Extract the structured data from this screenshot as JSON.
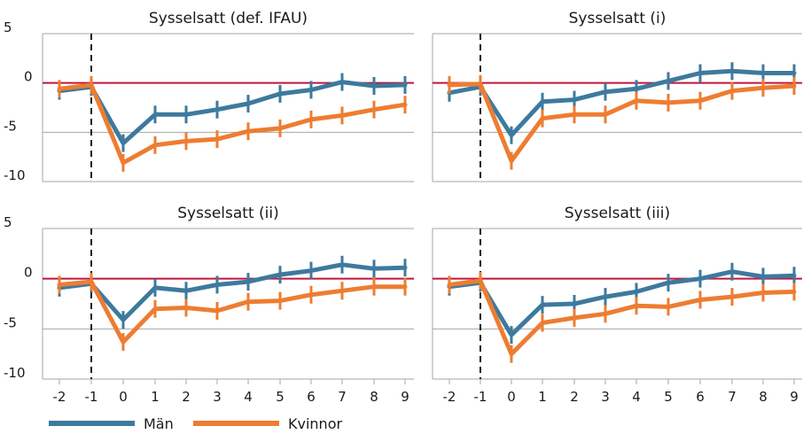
{
  "chart_data": [
    {
      "type": "line",
      "title": "Sysselsatt (def. IFAU)",
      "x": [
        -2,
        -1,
        0,
        1,
        2,
        3,
        4,
        5,
        6,
        7,
        8,
        9
      ],
      "ylim": [
        -10,
        5
      ],
      "yticks": [
        5,
        0,
        -5,
        -10
      ],
      "series": [
        {
          "name": "Män",
          "values": [
            -0.8,
            -0.4,
            -6.1,
            -3.2,
            -3.2,
            -2.7,
            -2.1,
            -1.1,
            -0.7,
            0.1,
            -0.3,
            -0.2
          ]
        },
        {
          "name": "Kvinnor",
          "values": [
            -0.6,
            -0.2,
            -8.1,
            -6.3,
            -5.9,
            -5.7,
            -4.9,
            -4.6,
            -3.7,
            -3.3,
            -2.7,
            -2.2
          ]
        }
      ]
    },
    {
      "type": "line",
      "title": "Sysselsatt (i)",
      "x": [
        -2,
        -1,
        0,
        1,
        2,
        3,
        4,
        5,
        6,
        7,
        8,
        9
      ],
      "ylim": [
        -10,
        5
      ],
      "yticks": [
        5,
        0,
        -5,
        -10
      ],
      "series": [
        {
          "name": "Män",
          "values": [
            -1.0,
            -0.4,
            -5.3,
            -1.9,
            -1.7,
            -0.9,
            -0.6,
            0.2,
            1.0,
            1.2,
            1.0,
            1.0
          ]
        },
        {
          "name": "Kvinnor",
          "values": [
            -0.2,
            -0.1,
            -7.9,
            -3.6,
            -3.2,
            -3.2,
            -1.8,
            -2.0,
            -1.8,
            -0.8,
            -0.5,
            -0.3
          ]
        }
      ]
    },
    {
      "type": "line",
      "title": "Sysselsatt (ii)",
      "x": [
        -2,
        -1,
        0,
        1,
        2,
        3,
        4,
        5,
        6,
        7,
        8,
        9
      ],
      "ylim": [
        -10,
        5
      ],
      "yticks": [
        5,
        0,
        -5,
        -10
      ],
      "series": [
        {
          "name": "Män",
          "values": [
            -0.9,
            -0.5,
            -4.1,
            -0.9,
            -1.2,
            -0.6,
            -0.3,
            0.4,
            0.8,
            1.4,
            1.0,
            1.1
          ]
        },
        {
          "name": "Kvinnor",
          "values": [
            -0.6,
            -0.3,
            -6.3,
            -3.0,
            -2.9,
            -3.2,
            -2.3,
            -2.2,
            -1.6,
            -1.2,
            -0.8,
            -0.8
          ]
        }
      ]
    },
    {
      "type": "line",
      "title": "Sysselsatt (iii)",
      "x": [
        -2,
        -1,
        0,
        1,
        2,
        3,
        4,
        5,
        6,
        7,
        8,
        9
      ],
      "ylim": [
        -10,
        5
      ],
      "yticks": [
        5,
        0,
        -5,
        -10
      ],
      "series": [
        {
          "name": "Män",
          "values": [
            -0.8,
            -0.4,
            -5.6,
            -2.6,
            -2.5,
            -1.8,
            -1.3,
            -0.4,
            0.0,
            0.7,
            0.2,
            0.3
          ]
        },
        {
          "name": "Kvinnor",
          "values": [
            -0.6,
            -0.2,
            -7.5,
            -4.4,
            -3.9,
            -3.5,
            -2.7,
            -2.8,
            -2.1,
            -1.8,
            -1.4,
            -1.3
          ]
        }
      ]
    }
  ],
  "legend": {
    "items": [
      {
        "label": "Män",
        "color": "#3d7a9e"
      },
      {
        "label": "Kvinnor",
        "color": "#ed7d31"
      }
    ]
  },
  "colors": {
    "men": "#3d7a9e",
    "women": "#ed7d31",
    "zero_line": "#c0163c",
    "grid": "#a6a6a6",
    "event_line": "#1a1a1a"
  }
}
